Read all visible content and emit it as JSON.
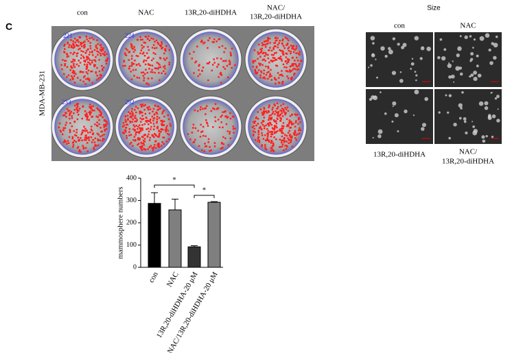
{
  "panel_label": "C",
  "plate": {
    "columns": [
      [
        "con"
      ],
      [
        "NAC"
      ],
      [
        "13R,20-diHDHA"
      ],
      [
        "NAC/",
        "13R,20-diHDHA"
      ]
    ],
    "row_label": "MDA-MB-231",
    "well_numbers": [
      "221",
      "224",
      "233",
      "292"
    ]
  },
  "size_panel": {
    "title": "Size",
    "top_labels": [
      "con",
      "NAC"
    ],
    "bottom_labels": [
      [
        "13R,20-diHDHA"
      ],
      [
        "NAC/",
        "13R,20-diHDHA"
      ]
    ]
  },
  "chart_data": {
    "type": "bar",
    "y_label": "mammosphere numbers",
    "categories": [
      "con",
      "NAC",
      "13R,20-diHDHA-20 μM",
      "NAC/13R,20-diHDHA-20 μM"
    ],
    "values": [
      287,
      258,
      92,
      292
    ],
    "errors": [
      48,
      48,
      5,
      3
    ],
    "colors": [
      "#000000",
      "#7f7f7f",
      "#333333",
      "#7f7f7f"
    ],
    "ylim": [
      0,
      400
    ],
    "yticks": [
      0,
      100,
      200,
      300,
      400
    ],
    "annotations": [
      "*",
      "*"
    ]
  }
}
